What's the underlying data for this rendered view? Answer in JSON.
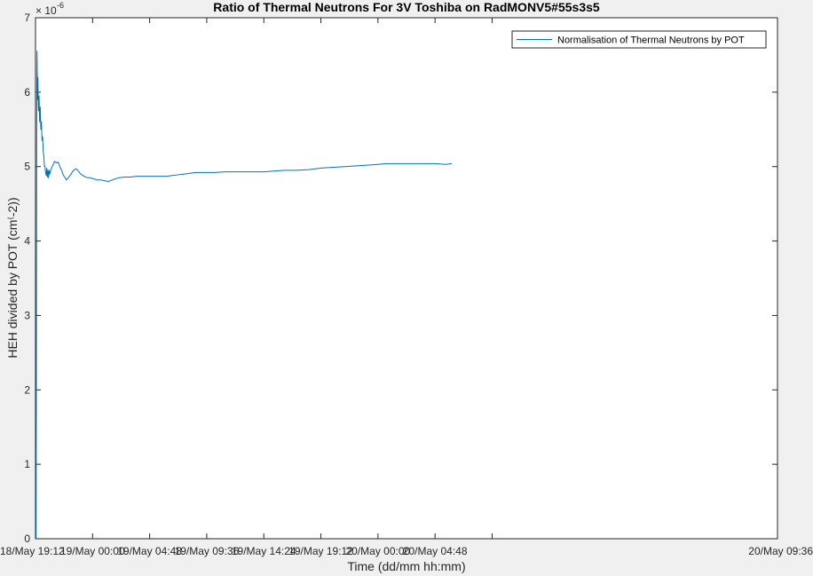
{
  "chart_data": {
    "type": "line",
    "title": "Ratio of Thermal Neutrons For 3V Toshiba on RadMONV5#55s3s5",
    "xlabel": "Time (dd/mm hh:mm)",
    "ylabel": "HEH divided by POT (cm⁽-2))",
    "y_exponent_label": "× 10",
    "y_exponent_power": "-6",
    "xlim_hours": [
      0,
      62.4
    ],
    "ylim": [
      0,
      7
    ],
    "x_ticks": [
      {
        "hours": 0,
        "label": "18/May 19:12"
      },
      {
        "hours": 4.8,
        "label": "19/May 00:00"
      },
      {
        "hours": 9.6,
        "label": "19/May 04:48"
      },
      {
        "hours": 14.4,
        "label": "19/May 09:36"
      },
      {
        "hours": 19.2,
        "label": "19/May 14:24"
      },
      {
        "hours": 24.0,
        "label": "19/May 19:12"
      },
      {
        "hours": 28.8,
        "label": "20/May 00:00"
      },
      {
        "hours": 33.6,
        "label": "20/May 04:48"
      },
      {
        "hours": 38.4,
        "label": "20/May 09:36"
      }
    ],
    "y_ticks": [
      {
        "value": 0,
        "label": "0"
      },
      {
        "value": 1,
        "label": "1"
      },
      {
        "value": 2,
        "label": "2"
      },
      {
        "value": 3,
        "label": "3"
      },
      {
        "value": 4,
        "label": "4"
      },
      {
        "value": 5,
        "label": "5"
      },
      {
        "value": 6,
        "label": "6"
      },
      {
        "value": 7,
        "label": "7"
      }
    ],
    "grid": false,
    "legend_position": "top-right",
    "series": [
      {
        "name": "Normalisation of Thermal Neutrons by POT",
        "color": "#0072BD",
        "points": [
          [
            0.05,
            0.0
          ],
          [
            0.08,
            3.0
          ],
          [
            0.1,
            5.6
          ],
          [
            0.13,
            6.55
          ],
          [
            0.16,
            5.9
          ],
          [
            0.2,
            6.2
          ],
          [
            0.25,
            5.75
          ],
          [
            0.3,
            5.95
          ],
          [
            0.35,
            5.6
          ],
          [
            0.4,
            5.8
          ],
          [
            0.45,
            5.5
          ],
          [
            0.5,
            5.6
          ],
          [
            0.55,
            5.35
          ],
          [
            0.6,
            5.4
          ],
          [
            0.65,
            5.2
          ],
          [
            0.7,
            5.15
          ],
          [
            0.75,
            5.0
          ],
          [
            0.8,
            5.0
          ],
          [
            0.85,
            4.92
          ],
          [
            0.9,
            4.88
          ],
          [
            0.95,
            4.98
          ],
          [
            1.0,
            4.86
          ],
          [
            1.05,
            4.95
          ],
          [
            1.1,
            4.85
          ],
          [
            1.15,
            4.95
          ],
          [
            1.2,
            4.9
          ],
          [
            1.3,
            4.96
          ],
          [
            1.4,
            5.0
          ],
          [
            1.5,
            5.03
          ],
          [
            1.6,
            5.07
          ],
          [
            1.7,
            5.06
          ],
          [
            1.8,
            5.05
          ],
          [
            1.9,
            5.06
          ],
          [
            2.0,
            5.02
          ],
          [
            2.1,
            4.98
          ],
          [
            2.2,
            4.95
          ],
          [
            2.3,
            4.9
          ],
          [
            2.4,
            4.87
          ],
          [
            2.5,
            4.85
          ],
          [
            2.6,
            4.82
          ],
          [
            2.7,
            4.84
          ],
          [
            2.8,
            4.86
          ],
          [
            2.9,
            4.88
          ],
          [
            3.0,
            4.9
          ],
          [
            3.1,
            4.93
          ],
          [
            3.2,
            4.95
          ],
          [
            3.3,
            4.96
          ],
          [
            3.4,
            4.97
          ],
          [
            3.5,
            4.96
          ],
          [
            3.6,
            4.94
          ],
          [
            3.7,
            4.92
          ],
          [
            3.8,
            4.9
          ],
          [
            3.9,
            4.89
          ],
          [
            4.0,
            4.88
          ],
          [
            4.2,
            4.86
          ],
          [
            4.4,
            4.85
          ],
          [
            4.6,
            4.85
          ],
          [
            4.8,
            4.84
          ],
          [
            5.0,
            4.83
          ],
          [
            5.2,
            4.82
          ],
          [
            5.5,
            4.82
          ],
          [
            5.8,
            4.81
          ],
          [
            6.1,
            4.8
          ],
          [
            6.3,
            4.81
          ],
          [
            6.6,
            4.83
          ],
          [
            7.0,
            4.85
          ],
          [
            7.5,
            4.86
          ],
          [
            8.0,
            4.86
          ],
          [
            8.5,
            4.87
          ],
          [
            9.0,
            4.87
          ],
          [
            9.5,
            4.87
          ],
          [
            10.0,
            4.87
          ],
          [
            10.5,
            4.87
          ],
          [
            11.0,
            4.87
          ],
          [
            11.5,
            4.88
          ],
          [
            12.0,
            4.89
          ],
          [
            12.5,
            4.9
          ],
          [
            13.0,
            4.91
          ],
          [
            13.5,
            4.92
          ],
          [
            14.0,
            4.92
          ],
          [
            14.4,
            4.92
          ],
          [
            15.0,
            4.92
          ],
          [
            16.0,
            4.93
          ],
          [
            17.0,
            4.93
          ],
          [
            18.0,
            4.93
          ],
          [
            19.0,
            4.93
          ],
          [
            19.2,
            4.93
          ],
          [
            20.0,
            4.94
          ],
          [
            21.0,
            4.95
          ],
          [
            22.0,
            4.95
          ],
          [
            23.0,
            4.96
          ],
          [
            24.0,
            4.98
          ],
          [
            25.0,
            4.99
          ],
          [
            26.0,
            5.0
          ],
          [
            27.0,
            5.01
          ],
          [
            28.0,
            5.02
          ],
          [
            28.8,
            5.03
          ],
          [
            29.5,
            5.04
          ],
          [
            30.0,
            5.04
          ],
          [
            31.0,
            5.04
          ],
          [
            32.0,
            5.04
          ],
          [
            33.0,
            5.04
          ],
          [
            33.6,
            5.04
          ],
          [
            34.5,
            5.03
          ],
          [
            35.0,
            5.04
          ]
        ]
      }
    ]
  }
}
